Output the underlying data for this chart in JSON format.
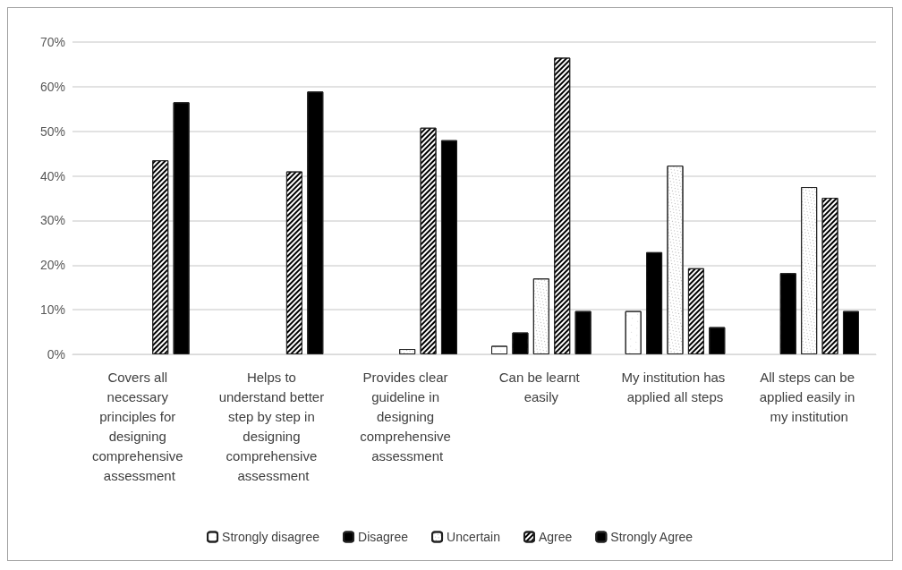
{
  "chart_data": {
    "type": "bar",
    "categories": [
      "Covers all necessary principles for designing comprehensive assessment",
      "Helps to understand better step by step in designing comprehensive assessment",
      "Provides clear guideline in designing comprehensive assessment",
      "Can be learnt easily",
      "My institution has applied all steps",
      "All steps can be applied easily in my institution"
    ],
    "series": [
      {
        "name": "Strongly disagree",
        "color": "#ffffff",
        "values": [
          null,
          null,
          null,
          1.9,
          9.7,
          null
        ]
      },
      {
        "name": "Disagree",
        "color": "#000000",
        "values": [
          null,
          null,
          null,
          4.9,
          22.9,
          18.2
        ]
      },
      {
        "name": "Uncertain",
        "color": "#ffffff",
        "values": [
          null,
          null,
          1.2,
          17.0,
          42.3,
          37.5
        ]
      },
      {
        "name": "Agree",
        "color": "#ffffff",
        "values": [
          43.5,
          41.0,
          50.8,
          66.5,
          19.3,
          35.1
        ]
      },
      {
        "name": "Strongly Agree",
        "color": "#000000",
        "values": [
          56.5,
          58.9,
          48.0,
          9.7,
          6.1,
          9.7
        ]
      }
    ],
    "ylim": [
      0,
      70
    ],
    "yticks": [
      {
        "value": 0,
        "label": "0%"
      },
      {
        "value": 10,
        "label": "10%"
      },
      {
        "value": 20,
        "label": "20%"
      },
      {
        "value": 30,
        "label": "30%"
      },
      {
        "value": 40,
        "label": "40%"
      },
      {
        "value": 50,
        "label": "50%"
      },
      {
        "value": 60,
        "label": "60%"
      },
      {
        "value": 70,
        "label": "70%"
      }
    ],
    "grid": "y",
    "legend": "bottom"
  }
}
